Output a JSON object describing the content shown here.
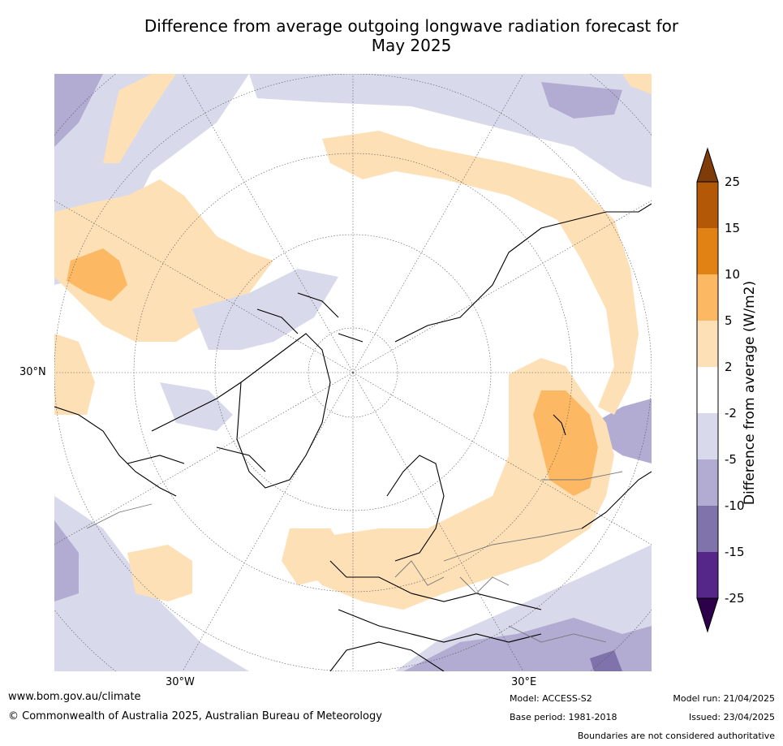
{
  "title_line1": "Difference from average outgoing longwave radiation forecast for",
  "title_line2": "May 2025",
  "labels": {
    "lat_30n": "30°N",
    "lon_30w": "30°W",
    "lon_30e": "30°E"
  },
  "colorbar": {
    "label": "Difference from average (W/m2)",
    "ticks": [
      "25",
      "15",
      "10",
      "5",
      "2",
      "-2",
      "-5",
      "-10",
      "-15",
      "-25"
    ],
    "colors": {
      "over": "#7f3b08",
      "b15_25": "#b35806",
      "b10_15": "#e08214",
      "b5_10": "#fdb863",
      "b2_5": "#fee0b6",
      "bm2_2": "#ffffff",
      "bm5_m2": "#d8daeb",
      "bm10_m5": "#b2abd2",
      "bm15_m10": "#8073ac",
      "bm25_m15": "#542788",
      "under": "#2d004b"
    }
  },
  "footer": {
    "website": "www.bom.gov.au/climate",
    "copyright": "© Commonwealth of Australia 2025, Australian Bureau of Meteorology",
    "model": "Model: ACCESS-S2",
    "base_period": "Base period: 1981-2018",
    "model_run": "Model run: 21/04/2025",
    "issued": "Issued: 23/04/2025",
    "disclaimer": "Boundaries are not considered authoritative"
  }
}
